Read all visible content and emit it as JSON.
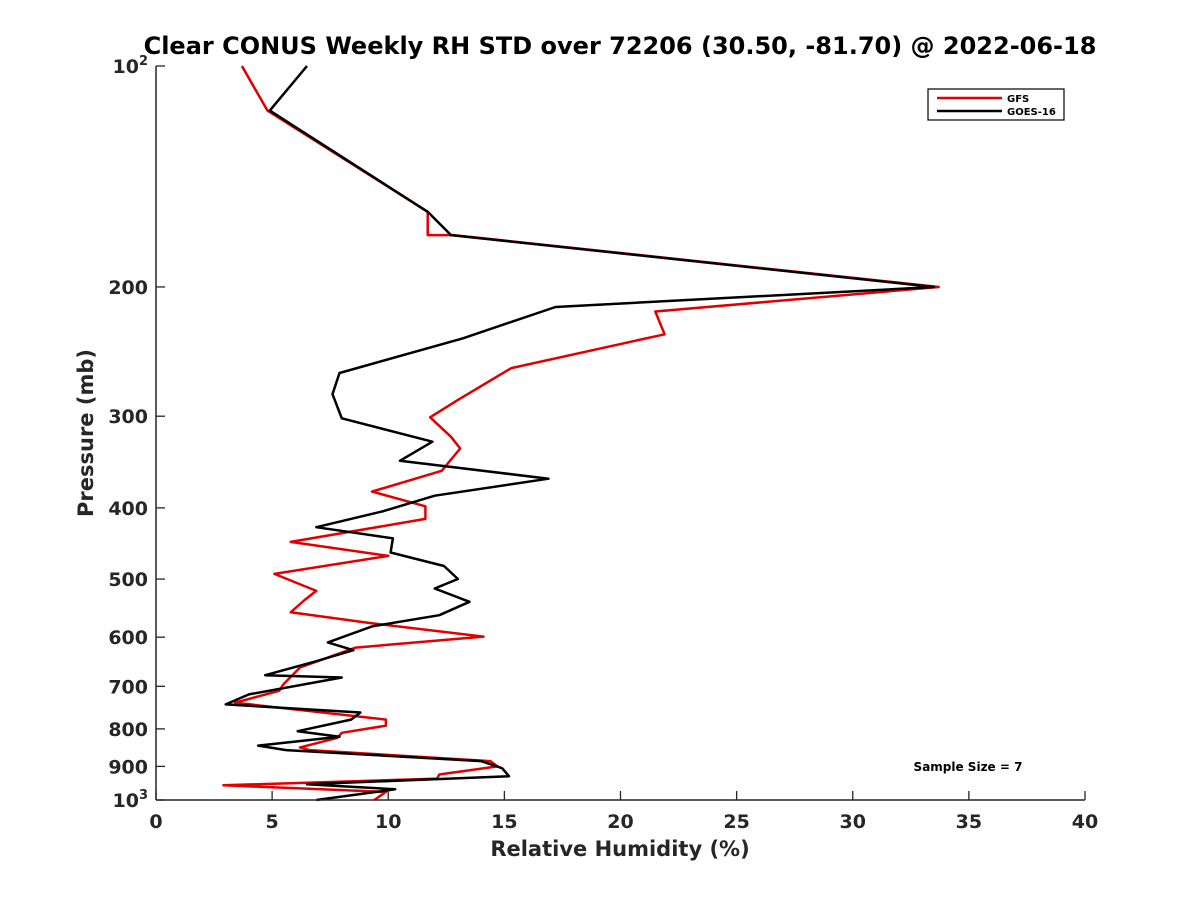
{
  "chart_data": {
    "type": "line",
    "title": "Clear CONUS Weekly RH STD over 72206 (30.50, -81.70) @ 2022-06-18",
    "xlabel": "Relative Humidity (%)",
    "ylabel": "Pressure (mb)",
    "xlim": [
      0,
      40
    ],
    "ylim": [
      100,
      1000
    ],
    "yscale": "log",
    "y_reversed": true,
    "grid": false,
    "legend_position": "top-right",
    "x_ticks": [
      "0",
      "5",
      "10",
      "15",
      "20",
      "25",
      "30",
      "35",
      "40"
    ],
    "x_tick_values": [
      0,
      5,
      10,
      15,
      20,
      25,
      30,
      35,
      40
    ],
    "y_tick_values": [
      100,
      200,
      300,
      400,
      500,
      600,
      700,
      800,
      900,
      1000
    ],
    "y_tick_labels": [
      {
        "base": "10",
        "exp": "2"
      },
      {
        "base": "200",
        "exp": ""
      },
      {
        "base": "300",
        "exp": ""
      },
      {
        "base": "400",
        "exp": ""
      },
      {
        "base": "500",
        "exp": ""
      },
      {
        "base": "600",
        "exp": ""
      },
      {
        "base": "700",
        "exp": ""
      },
      {
        "base": "800",
        "exp": ""
      },
      {
        "base": "900",
        "exp": ""
      },
      {
        "base": "10",
        "exp": "3"
      }
    ],
    "annotation": "Sample Size = 7",
    "series": [
      {
        "name": "GFS",
        "color": "#e00000",
        "points": [
          [
            3.7,
            100
          ],
          [
            4.8,
            115
          ],
          [
            11.7,
            158
          ],
          [
            11.7,
            170
          ],
          [
            12.8,
            170
          ],
          [
            33.7,
            200
          ],
          [
            21.5,
            216
          ],
          [
            21.9,
            232
          ],
          [
            15.3,
            258
          ],
          [
            13.0,
            285
          ],
          [
            11.8,
            301
          ],
          [
            12.7,
            320
          ],
          [
            13.1,
            332
          ],
          [
            12.3,
            356
          ],
          [
            9.3,
            380
          ],
          [
            11.6,
            398
          ],
          [
            11.6,
            414
          ],
          [
            5.8,
            445
          ],
          [
            10.0,
            465
          ],
          [
            5.1,
            492
          ],
          [
            6.9,
            519
          ],
          [
            6.4,
            534
          ],
          [
            5.8,
            555
          ],
          [
            9.2,
            574
          ],
          [
            14.1,
            599
          ],
          [
            8.6,
            620
          ],
          [
            6.2,
            660
          ],
          [
            5.5,
            695
          ],
          [
            5.3,
            710
          ],
          [
            3.4,
            737
          ],
          [
            9.9,
            777
          ],
          [
            9.9,
            792
          ],
          [
            8.0,
            810
          ],
          [
            7.8,
            823
          ],
          [
            6.2,
            848
          ],
          [
            6.6,
            855
          ],
          [
            14.4,
            885
          ],
          [
            14.7,
            900
          ],
          [
            12.2,
            923
          ],
          [
            12.1,
            935
          ],
          [
            2.9,
            955
          ],
          [
            9.9,
            975
          ],
          [
            9.4,
            1000
          ]
        ]
      },
      {
        "name": "GOES-16",
        "color": "#000000",
        "points": [
          [
            6.5,
            100
          ],
          [
            4.9,
            115
          ],
          [
            11.7,
            158
          ],
          [
            12.7,
            170
          ],
          [
            33.5,
            200
          ],
          [
            17.2,
            213
          ],
          [
            13.2,
            235
          ],
          [
            7.9,
            262
          ],
          [
            7.6,
            280
          ],
          [
            8.0,
            302
          ],
          [
            11.9,
            325
          ],
          [
            10.5,
            345
          ],
          [
            16.9,
            365
          ],
          [
            12.0,
            385
          ],
          [
            9.8,
            404
          ],
          [
            6.9,
            425
          ],
          [
            10.2,
            440
          ],
          [
            10.1,
            460
          ],
          [
            12.4,
            480
          ],
          [
            13.0,
            500
          ],
          [
            12.0,
            515
          ],
          [
            13.5,
            537
          ],
          [
            12.2,
            560
          ],
          [
            9.3,
            580
          ],
          [
            7.4,
            610
          ],
          [
            8.5,
            625
          ],
          [
            6.9,
            647
          ],
          [
            4.7,
            676
          ],
          [
            8.0,
            681
          ],
          [
            4.0,
            718
          ],
          [
            3.0,
            741
          ],
          [
            8.8,
            760
          ],
          [
            8.4,
            777
          ],
          [
            6.1,
            806
          ],
          [
            7.9,
            820
          ],
          [
            4.4,
            843
          ],
          [
            5.6,
            855
          ],
          [
            14.0,
            885
          ],
          [
            14.9,
            905
          ],
          [
            15.2,
            928
          ],
          [
            6.5,
            952
          ],
          [
            10.3,
            967
          ],
          [
            6.9,
            1000
          ]
        ]
      }
    ]
  }
}
